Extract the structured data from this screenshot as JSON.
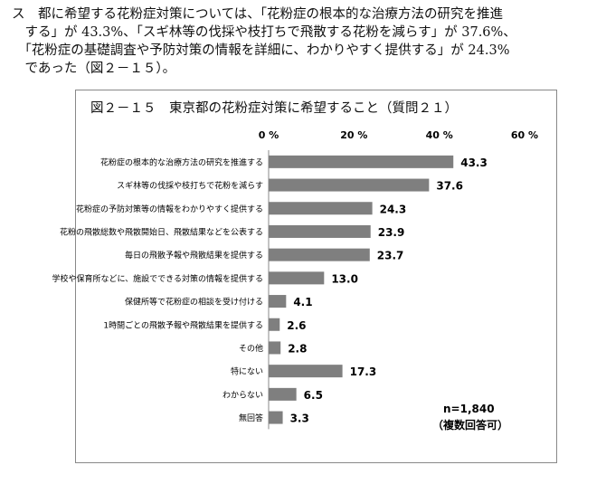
{
  "paragraph": {
    "lines": [
      "ス　都に希望する花粉症対策については、「花粉症の根本的な治療方法の研究を推進",
      "　する」が 43.3%、「スギ林等の伐採や枝打ちで飛散する花粉を減らす」が 37.6%、",
      "　「花粉症の基礎調査や予防対策の情報を詳細に、わかりやすく提供する」が 24.3%",
      "　であった（図２－１５）。"
    ]
  },
  "chart_data": {
    "type": "bar",
    "orientation": "horizontal",
    "title": "図２－１５　東京都の花粉症対策に希望すること（質問２１）",
    "xlim": [
      0,
      60
    ],
    "xticks": [
      "0 %",
      "20 %",
      "40 %",
      "60 %"
    ],
    "categories": [
      "花粉症の根本的な治療方法の研究を推進する",
      "スギ林等の伐採や枝打ちで花粉を減らす",
      "花粉症の予防対策等の情報をわかりやすく提供する",
      "花粉の飛散総数や飛散開始日、飛散結果などを公表する",
      "毎日の飛散予報や飛散結果を提供する",
      "学校や保育所などに、施設でできる対策の情報を提供する",
      "保健所等で花粉症の相談を受け付ける",
      "1時間ごとの飛散予報や飛散結果を提供する",
      "その他",
      "特にない",
      "わからない",
      "無回答"
    ],
    "values": [
      43.3,
      37.6,
      24.3,
      23.9,
      23.7,
      13.0,
      4.1,
      2.6,
      2.8,
      17.3,
      6.5,
      3.3
    ],
    "value_labels": [
      "43.3",
      "37.6",
      "24.3",
      "23.9",
      "23.7",
      "13.0",
      "4.1",
      "2.6",
      "2.8",
      "17.3",
      "6.5",
      "3.3"
    ],
    "note": [
      "n=1,840",
      "（複数回答可）"
    ],
    "bar_color": "#7f7f7f"
  }
}
